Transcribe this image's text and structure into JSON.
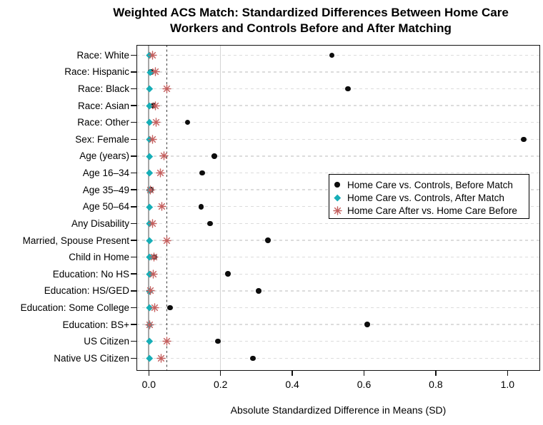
{
  "chart_data": {
    "type": "scatter",
    "title_line1": "Weighted ACS Match: Standardized Differences Between Home Care",
    "title_line2": "Workers and Controls Before and After Matching",
    "xlabel": "Absolute Standardized Difference in Means (SD)",
    "x_tick_values": [
      0.0,
      0.2,
      0.4,
      0.6,
      0.8,
      1.0
    ],
    "x_tick_labels": [
      "0.0",
      "0.2",
      "0.4",
      "0.6",
      "0.8",
      "1.0"
    ],
    "xlim": [
      -0.034,
      1.091
    ],
    "grid": "horizontal-dashed",
    "legend_position": "middle-right-inside",
    "reference_lines": [
      {
        "x": 0.0,
        "style": "solid",
        "color": "#a6a6a6",
        "width": 2
      },
      {
        "x": 0.05,
        "style": "dashed",
        "color": "#3c3c3c",
        "width": 1.6
      },
      {
        "x": 0.2,
        "style": "solid",
        "color": "#d4d4d4",
        "width": 1.5
      }
    ],
    "categories": [
      "Race: White",
      "Race: Hispanic",
      "Race: Black",
      "Race: Asian",
      "Race: Other",
      "Sex: Female",
      "Age (years)",
      "Age 16–34",
      "Age 35–49",
      "Age 50–64",
      "Any Disability",
      "Married, Spouse Present",
      "Child in Home",
      "Education: No HS",
      "Education: HS/GED",
      "Education: Some College",
      "Education: BS+",
      "US Citizen",
      "Native US Citizen"
    ],
    "series": [
      {
        "name": "Home Care vs. Controls, Before Match",
        "marker": "circle",
        "color": "#0d0d0d",
        "values": [
          0.51,
          0.005,
          0.555,
          0.012,
          0.108,
          1.045,
          0.183,
          0.149,
          0.005,
          0.146,
          0.171,
          0.332,
          0.015,
          0.221,
          0.306,
          0.059,
          0.609,
          0.193,
          0.29
        ]
      },
      {
        "name": "Home Care vs. Controls, After Match",
        "marker": "diamond",
        "color": "#17aeb7",
        "values": [
          0.001,
          0.003,
          0.001,
          0.001,
          0.001,
          0.001,
          0.001,
          0.001,
          0.002,
          0.001,
          0.001,
          0.001,
          0.002,
          0.001,
          0.002,
          0.001,
          0.002,
          0.001,
          0.001
        ]
      },
      {
        "name": "Home Care After vs. Home Care Before",
        "marker": "asterisk",
        "color": "#c45f5e",
        "values": [
          0.01,
          0.019,
          0.05,
          0.019,
          0.02,
          0.011,
          0.043,
          0.033,
          0.005,
          0.037,
          0.011,
          0.05,
          0.015,
          0.012,
          0.004,
          0.017,
          0.003,
          0.05,
          0.035
        ]
      }
    ]
  }
}
